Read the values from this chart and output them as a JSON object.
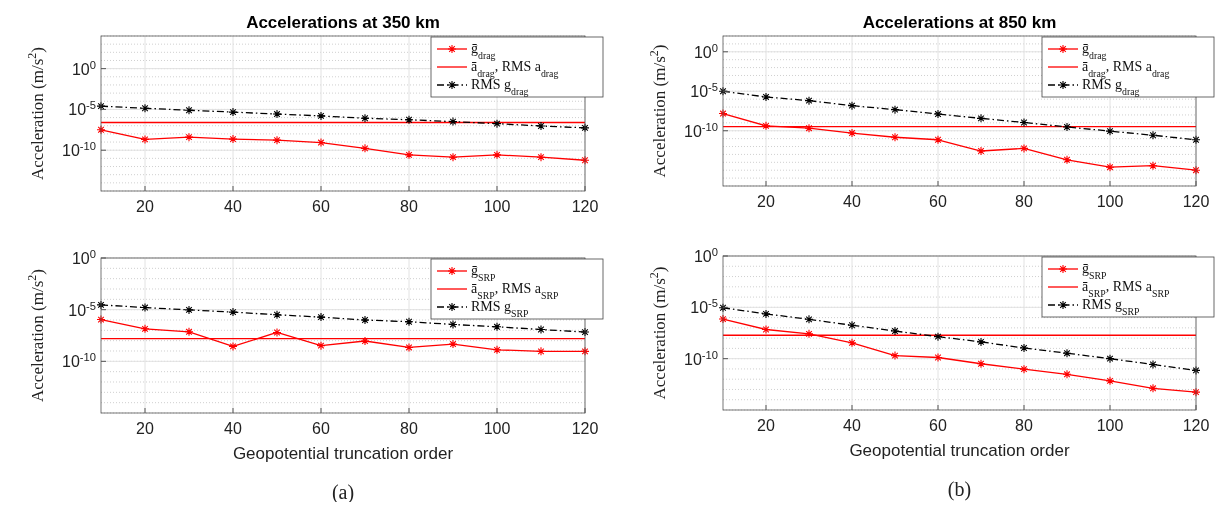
{
  "chart_data": [
    {
      "type": "line",
      "title": "Accelerations at 350 km",
      "ylabel": "Acceleration (m/s$^{2}$)",
      "x": [
        10,
        20,
        30,
        40,
        50,
        60,
        70,
        80,
        90,
        100,
        110,
        120
      ],
      "xlim": [
        10,
        120
      ],
      "xticks": [
        20,
        40,
        60,
        80,
        100,
        120
      ],
      "ylim": [
        1e-15,
        10000.0
      ],
      "yticks": [
        {
          "value": 1,
          "label": "10$^{0}$"
        },
        {
          "value": 1e-05,
          "label": "10$^{-5}$"
        },
        {
          "value": 1e-10,
          "label": "10$^{-10}$"
        }
      ],
      "log": true,
      "grid": true,
      "legend": "top right",
      "series": [
        {
          "name": "ḡ$_{drag}$",
          "color": "#ff0000",
          "marker": "cross",
          "line_style": "solid",
          "values": [
            3.2e-08,
            2.1e-09,
            4e-09,
            2.3e-09,
            1.7e-09,
            8.7e-10,
            1.7e-10,
            2.7e-11,
            1.4e-11,
            2.7e-11,
            1.4e-11,
            5.9e-12
          ]
        },
        {
          "name": "ā$_{drag}$, RMS a$_{drag}$",
          "color": "#ff0000",
          "marker": "none",
          "line_style": "solid",
          "values": [
            2.5e-07,
            2.5e-07,
            2.5e-07,
            2.5e-07,
            2.5e-07,
            2.5e-07,
            2.5e-07,
            2.5e-07,
            2.5e-07,
            2.5e-07,
            2.5e-07,
            2.5e-07
          ]
        },
        {
          "name": "RMS g$_{drag}$",
          "color": "#000000",
          "marker": "cross",
          "line_style": "dashed",
          "values": [
            2.5e-05,
            1.4e-05,
            7.9e-06,
            4.7e-06,
            2.7e-06,
            1.6e-06,
            8.3e-07,
            5.4e-07,
            3.2e-07,
            1.8e-07,
            9.3e-08,
            5.5e-08
          ]
        }
      ]
    },
    {
      "type": "line",
      "title": "Accelerations at 850 km",
      "ylabel": "Acceleration (m/s$^{2}$)",
      "x": [
        10,
        20,
        30,
        40,
        50,
        60,
        70,
        80,
        90,
        100,
        110,
        120
      ],
      "xlim": [
        10,
        120
      ],
      "xticks": [
        20,
        40,
        60,
        80,
        100,
        120
      ],
      "ylim": [
        1e-17,
        100.0
      ],
      "yticks": [
        {
          "value": 1,
          "label": "10$^{0}$"
        },
        {
          "value": 1e-05,
          "label": "10$^{-5}$"
        },
        {
          "value": 1e-10,
          "label": "10$^{-10}$"
        }
      ],
      "log": true,
      "grid": true,
      "legend": "top right",
      "series": [
        {
          "name": "ḡ$_{drag}$",
          "color": "#ff0000",
          "marker": "cross",
          "line_style": "solid",
          "values": [
            1.5e-08,
            4.2e-10,
            2.1e-10,
            5.1e-11,
            1.5e-11,
            7.2e-12,
            2.7e-13,
            5.8e-13,
            2.1e-14,
            2.4e-15,
            3.7e-15,
            1e-15
          ]
        },
        {
          "name": "ā$_{drag}$, RMS a$_{drag}$",
          "color": "#ff0000",
          "marker": "none",
          "line_style": "solid",
          "values": [
            3.3e-10,
            3.3e-10,
            3.3e-10,
            3.3e-10,
            3.3e-10,
            3.3e-10,
            3.3e-10,
            3.3e-10,
            3.3e-10,
            3.3e-10,
            3.3e-10,
            3.3e-10
          ]
        },
        {
          "name": "RMS g$_{drag}$",
          "color": "#000000",
          "marker": "cross",
          "line_style": "dashed",
          "values": [
            1e-05,
            1.9e-06,
            6.5e-07,
            1.5e-07,
            4.7e-08,
            1.3e-08,
            3.7e-09,
            1.1e-09,
            3e-10,
            8.9e-11,
            2.7e-11,
            7.2e-12
          ]
        }
      ]
    },
    {
      "type": "line",
      "xlabel": "Geopotential truncation order",
      "ylabel": "Acceleration (m/s$^{2}$)",
      "annotations": [
        "(a)"
      ],
      "x": [
        10,
        20,
        30,
        40,
        50,
        60,
        70,
        80,
        90,
        100,
        110,
        120
      ],
      "xlim": [
        10,
        120
      ],
      "xticks": [
        20,
        40,
        60,
        80,
        100,
        120
      ],
      "ylim": [
        1e-15,
        1
      ],
      "yticks": [
        {
          "value": 1,
          "label": "10$^{0}$"
        },
        {
          "value": 1e-05,
          "label": "10$^{-5}$"
        },
        {
          "value": 1e-10,
          "label": "10$^{-10}$"
        }
      ],
      "log": true,
      "grid": true,
      "legend": "top right",
      "series": [
        {
          "name": "ḡ$_{SRP}$",
          "color": "#ff0000",
          "marker": "cross",
          "line_style": "solid",
          "values": [
            1.1e-06,
            1.4e-07,
            7.2e-08,
            2.8e-09,
            6.2e-08,
            3.3e-09,
            9.3e-09,
            2.2e-09,
            4.7e-09,
            1.3e-09,
            9.3e-10,
            9.3e-10
          ]
        },
        {
          "name": "ā$_{SRP}$, RMS a$_{SRP}$",
          "color": "#ff0000",
          "marker": "none",
          "line_style": "solid",
          "values": [
            1.6e-08,
            1.6e-08,
            1.6e-08,
            1.6e-08,
            1.6e-08,
            1.6e-08,
            1.6e-08,
            1.6e-08,
            1.6e-08,
            1.6e-08,
            1.6e-08,
            1.6e-08
          ]
        },
        {
          "name": "RMS g$_{SRP}$",
          "color": "#000000",
          "marker": "cross",
          "line_style": "dashed",
          "values": [
            2.9e-05,
            1.6e-05,
            9.5e-06,
            5.8e-06,
            3.2e-06,
            1.9e-06,
            1e-06,
            6.8e-07,
            3.7e-07,
            2.2e-07,
            1.2e-07,
            6.8e-08
          ]
        }
      ]
    },
    {
      "type": "line",
      "xlabel": "Geopotential truncation order",
      "ylabel": "Acceleration (m/s$^{2}$)",
      "annotations": [
        "(b)"
      ],
      "x": [
        10,
        20,
        30,
        40,
        50,
        60,
        70,
        80,
        90,
        100,
        110,
        120
      ],
      "xlim": [
        10,
        120
      ],
      "xticks": [
        20,
        40,
        60,
        80,
        100,
        120
      ],
      "ylim": [
        1e-15,
        1
      ],
      "yticks": [
        {
          "value": 1,
          "label": "10$^{0}$"
        },
        {
          "value": 1e-05,
          "label": "10$^{-5}$"
        },
        {
          "value": 1e-10,
          "label": "10$^{-10}$"
        }
      ],
      "log": true,
      "grid": true,
      "legend": "top right",
      "series": [
        {
          "name": "ḡ$_{SRP}$",
          "color": "#ff0000",
          "marker": "cross",
          "line_style": "solid",
          "values": [
            7.2e-07,
            6.9e-08,
            2.6e-08,
            3.5e-09,
            2e-10,
            1.3e-10,
            3.2e-11,
            9.5e-12,
            3e-12,
            6.9e-13,
            1.3e-13,
            5.5e-14
          ]
        },
        {
          "name": "ā$_{SRP}$, RMS a$_{SRP}$",
          "color": "#ff0000",
          "marker": "none",
          "line_style": "solid",
          "values": [
            1.9e-08,
            1.9e-08,
            1.9e-08,
            1.9e-08,
            1.9e-08,
            1.9e-08,
            1.9e-08,
            1.9e-08,
            1.9e-08,
            1.9e-08,
            1.9e-08,
            1.9e-08
          ]
        },
        {
          "name": "RMS g$_{SRP}$",
          "color": "#000000",
          "marker": "cross",
          "line_style": "dashed",
          "values": [
            9.1e-06,
            2.3e-06,
            6.8e-07,
            1.8e-07,
            4.9e-08,
            1.4e-08,
            4.3e-09,
            1.1e-09,
            3.4e-10,
            1e-10,
            2.7e-11,
            7.2e-12
          ]
        }
      ]
    }
  ]
}
